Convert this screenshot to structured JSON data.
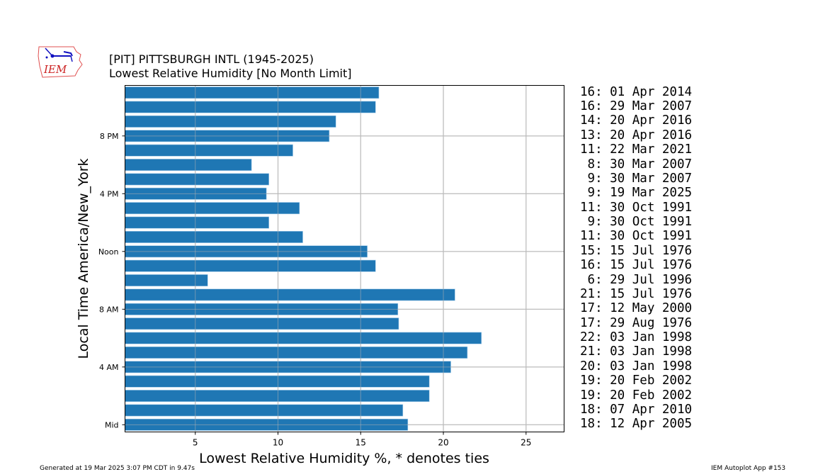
{
  "header": {
    "title_line1": "[PIT] PITTSBURGH INTL (1945-2025)",
    "title_line2": "Lowest Relative Humidity [No Month Limit]",
    "logo_text": "IEM"
  },
  "footer": {
    "generated": "Generated at 19 Mar 2025 3:07 PM CDT in 9.47s",
    "app": "IEM Autoplot App #153"
  },
  "colors": {
    "bar": "#1f77b4",
    "grid": "#b0b0b0",
    "logo_red": "#cc2222",
    "logo_blue": "#1010c0"
  },
  "chart_data": {
    "type": "bar",
    "orientation": "horizontal",
    "title": "[PIT] PITTSBURGH INTL (1945-2025)",
    "subtitle": "Lowest Relative Humidity [No Month Limit]",
    "xlabel": "Lowest Relative Humidity %, * denotes ties",
    "ylabel": "Local Time America/New_York",
    "xlim": [
      0.75,
      27.3
    ],
    "xticks": [
      5,
      10,
      15,
      20,
      25
    ],
    "ylim": [
      -0.5,
      23.5
    ],
    "yticks": [
      {
        "hour": 0,
        "label": "Mid"
      },
      {
        "hour": 4,
        "label": "4 AM"
      },
      {
        "hour": 8,
        "label": "8 AM"
      },
      {
        "hour": 12,
        "label": "Noon"
      },
      {
        "hour": 16,
        "label": "4 PM"
      },
      {
        "hour": 20,
        "label": "8 PM"
      }
    ],
    "grid": true,
    "hours": [
      0,
      1,
      2,
      3,
      4,
      5,
      6,
      7,
      8,
      9,
      10,
      11,
      12,
      13,
      14,
      15,
      16,
      17,
      18,
      19,
      20,
      21,
      22,
      23
    ],
    "values": [
      17.85,
      17.55,
      19.15,
      19.15,
      20.45,
      21.45,
      22.3,
      17.3,
      17.25,
      20.7,
      5.75,
      15.9,
      15.4,
      11.5,
      9.45,
      11.3,
      9.3,
      9.45,
      8.4,
      10.9,
      13.1,
      13.5,
      15.9,
      16.1
    ],
    "annotations": [
      "18: 12 Apr 2005",
      "18: 07 Apr 2010",
      "19: 20 Feb 2002",
      "19: 20 Feb 2002",
      "20: 03 Jan 1998",
      "21: 03 Jan 1998",
      "22: 03 Jan 1998",
      "17: 29 Aug 1976",
      "17: 12 May 2000",
      "21: 15 Jul 1976",
      " 6: 29 Jul 1996",
      "16: 15 Jul 1976",
      "15: 15 Jul 1976",
      "11: 30 Oct 1991",
      " 9: 30 Oct 1991",
      "11: 30 Oct 1991",
      " 9: 19 Mar 2025",
      " 9: 30 Mar 2007",
      " 8: 30 Mar 2007",
      "11: 22 Mar 2021",
      "13: 20 Apr 2016",
      "14: 20 Apr 2016",
      "16: 29 Mar 2007",
      "16: 01 Apr 2014"
    ]
  }
}
